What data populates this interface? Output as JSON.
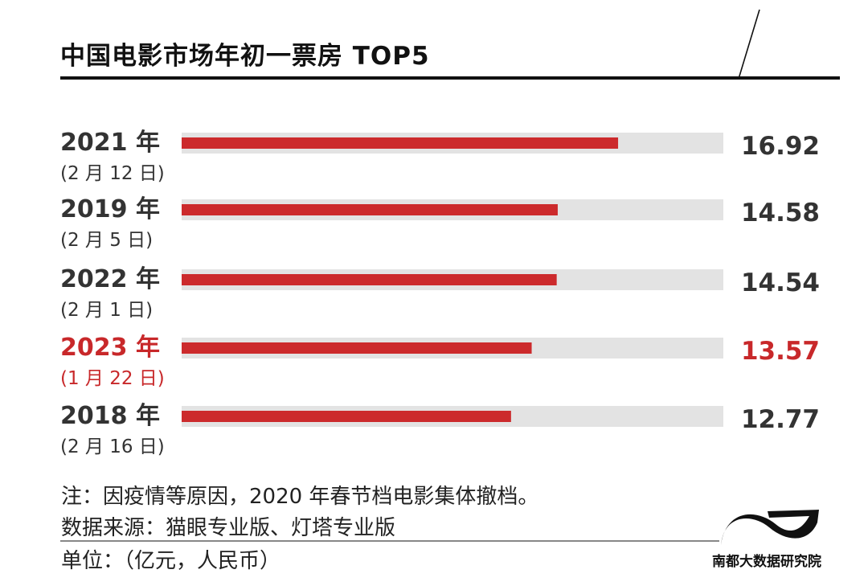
{
  "title": "中国电影市场年初一票房 TOP5",
  "notes": {
    "note": "注：因疫情等原因，2020 年春节档电影集体撤档。",
    "source": "数据来源：猫眼专业版、灯塔专业版",
    "unit": "单位：（亿元，人民币）"
  },
  "logo": {
    "text": "南都大数据研究院",
    "icon": "wave-logo-icon"
  },
  "colors": {
    "bar": "#cc2a2c",
    "track": "#e3e3e3",
    "highlight_text": "#c8282a",
    "label_text": "#333333",
    "value_text": "#333333"
  },
  "chart_data": {
    "type": "bar",
    "orientation": "horizontal",
    "categories": [
      "2021 年",
      "2019 年",
      "2022 年",
      "2023 年",
      "2018 年"
    ],
    "sublabels": [
      "(2 月 12 日)",
      "(2 月 5 日)",
      "(2 月 1 日)",
      "(1 月 22 日)",
      "(2 月 16 日)"
    ],
    "values": [
      16.92,
      14.58,
      14.54,
      13.57,
      12.77
    ],
    "value_labels": [
      "16.92",
      "14.58",
      "14.54",
      "13.57",
      "12.77"
    ],
    "highlight_index": 3,
    "xlim": [
      0,
      21
    ],
    "grid": false,
    "legend": "none"
  }
}
